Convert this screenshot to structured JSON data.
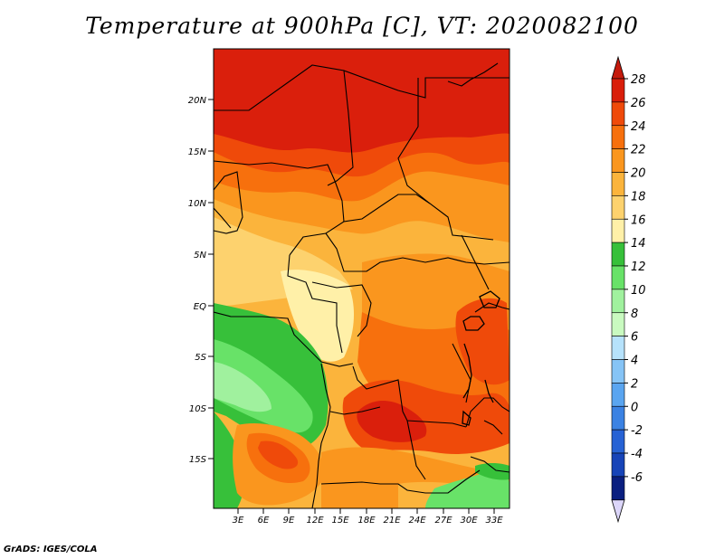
{
  "title": "Temperature at 900hPa [C], VT: 2020082100",
  "credit": "GrADS: IGES/COLA",
  "lat_labels": [
    "20N",
    "15N",
    "10N",
    "5N",
    "EQ",
    "5S",
    "10S",
    "15S"
  ],
  "lon_labels": [
    "3E",
    "6E",
    "9E",
    "12E",
    "15E",
    "18E",
    "21E",
    "24E",
    "27E",
    "30E",
    "33E"
  ],
  "colorbar": {
    "labels": [
      "28",
      "26",
      "24",
      "22",
      "20",
      "18",
      "16",
      "14",
      "12",
      "10",
      "8",
      "6",
      "4",
      "2",
      "0",
      "-2",
      "-4",
      "-6"
    ],
    "colors": [
      "#d91e0a",
      "#ef4a0a",
      "#f7700d",
      "#fa961e",
      "#fbb43c",
      "#fdd26e",
      "#fff0a8",
      "#37c03a",
      "#68e268",
      "#a0f19e",
      "#c9fac0",
      "#b6e2fb",
      "#86c4f6",
      "#5aa5f0",
      "#3b82e3",
      "#2762d4",
      "#1744b8",
      "#0a1f80"
    ],
    "top_arrow_color": "#c51a0c",
    "bottom_arrow_color": "#dcd6fa"
  },
  "legend_levels": {
    "red": "#da1f0c",
    "red_orange": "#ef4a0a",
    "orange": "#f7700d",
    "light_orange": "#fa961e",
    "amber": "#fbb43c",
    "yellow": "#fdd26e",
    "pale_yellow": "#fff0a8",
    "green": "#37c03a",
    "light_green": "#68e268",
    "pale_green": "#a0f19e"
  }
}
